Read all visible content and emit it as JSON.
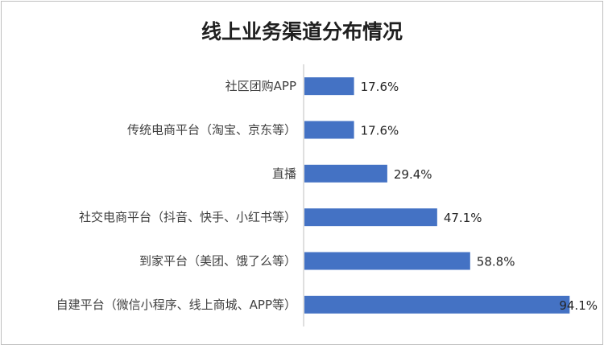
{
  "chart_data": {
    "type": "bar",
    "orientation": "horizontal",
    "title": "线上业务渠道分布情况",
    "categories": [
      "社区团购APP",
      "传统电商平台（淘宝、京东等）",
      "直播",
      "社交电商平台（抖音、快手、小红书等）",
      "到家平台（美团、饿了么等）",
      "自建平台（微信小程序、线上商城、APP等）"
    ],
    "values": [
      17.6,
      17.6,
      29.4,
      47.1,
      58.8,
      94.1
    ],
    "value_labels": [
      "17.6%",
      "17.6%",
      "29.4%",
      "47.1%",
      "58.8%",
      "94.1%"
    ],
    "xlim": [
      0,
      100
    ],
    "unit": "%",
    "bar_color": "#4472c4",
    "grid": false,
    "legend": "none"
  }
}
